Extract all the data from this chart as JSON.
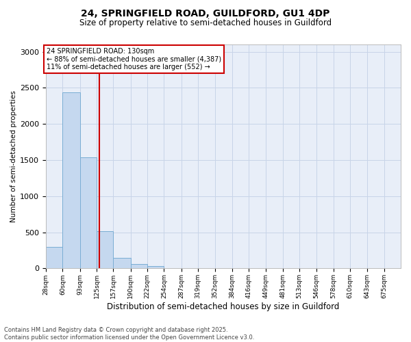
{
  "title_line1": "24, SPRINGFIELD ROAD, GUILDFORD, GU1 4DP",
  "title_line2": "Size of property relative to semi-detached houses in Guildford",
  "xlabel": "Distribution of semi-detached houses by size in Guildford",
  "ylabel": "Number of semi-detached properties",
  "bins": [
    28,
    60,
    93,
    125,
    157,
    190,
    222,
    254,
    287,
    319,
    352,
    384,
    416,
    449,
    481,
    513,
    546,
    578,
    610,
    643,
    675
  ],
  "counts": [
    300,
    2440,
    1540,
    520,
    145,
    60,
    35,
    0,
    0,
    0,
    0,
    0,
    0,
    0,
    0,
    0,
    0,
    0,
    0,
    0
  ],
  "bar_color": "#c5d8ef",
  "bar_edge_color": "#7aadd4",
  "property_size": 130,
  "vline_color": "#cc0000",
  "annotation_line1": "24 SPRINGFIELD ROAD: 130sqm",
  "annotation_line2": "← 88% of semi-detached houses are smaller (4,387)",
  "annotation_line3": "11% of semi-detached houses are larger (552) →",
  "annotation_box_color": "#ffffff",
  "annotation_border_color": "#cc0000",
  "ylim": [
    0,
    3100
  ],
  "yticks": [
    0,
    500,
    1000,
    1500,
    2000,
    2500,
    3000
  ],
  "grid_color": "#c8d4e8",
  "background_color": "#e8eef8",
  "footer_text": "Contains HM Land Registry data © Crown copyright and database right 2025.\nContains public sector information licensed under the Open Government Licence v3.0.",
  "tick_labels": [
    "28sqm",
    "60sqm",
    "93sqm",
    "125sqm",
    "157sqm",
    "190sqm",
    "222sqm",
    "254sqm",
    "287sqm",
    "319sqm",
    "352sqm",
    "384sqm",
    "416sqm",
    "449sqm",
    "481sqm",
    "513sqm",
    "546sqm",
    "578sqm",
    "610sqm",
    "643sqm",
    "675sqm"
  ]
}
